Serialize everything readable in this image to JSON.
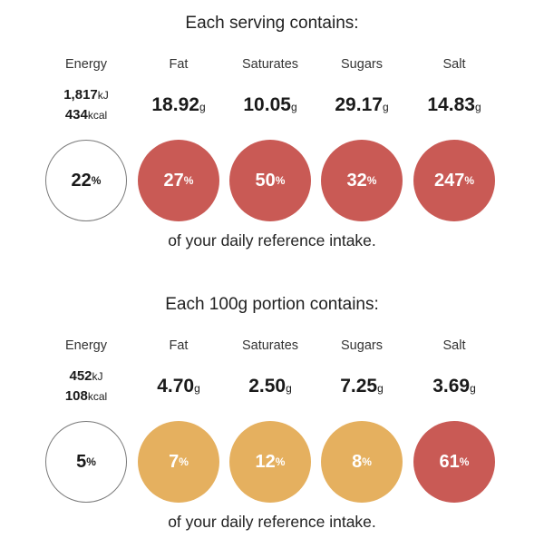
{
  "serving": {
    "heading": "Each serving contains:",
    "labels": [
      "Energy",
      "Fat",
      "Saturates",
      "Sugars",
      "Salt"
    ],
    "energy": {
      "kj": "1,817",
      "kj_unit": "kJ",
      "kcal": "434",
      "kcal_unit": "kcal"
    },
    "nutrients": [
      {
        "value": "18.92",
        "unit": "g"
      },
      {
        "value": "10.05",
        "unit": "g"
      },
      {
        "value": "29.17",
        "unit": "g"
      },
      {
        "value": "14.83",
        "unit": "g"
      }
    ],
    "percents": [
      {
        "value": "22",
        "sign": "%",
        "level": "white"
      },
      {
        "value": "27",
        "sign": "%",
        "level": "red"
      },
      {
        "value": "50",
        "sign": "%",
        "level": "red"
      },
      {
        "value": "32",
        "sign": "%",
        "level": "red"
      },
      {
        "value": "247",
        "sign": "%",
        "level": "red"
      }
    ],
    "footer": "of your daily reference intake."
  },
  "per100g": {
    "heading": "Each 100g portion contains:",
    "labels": [
      "Energy",
      "Fat",
      "Saturates",
      "Sugars",
      "Salt"
    ],
    "energy": {
      "kj": "452",
      "kj_unit": "kJ",
      "kcal": "108",
      "kcal_unit": "kcal"
    },
    "nutrients": [
      {
        "value": "4.70",
        "unit": "g"
      },
      {
        "value": "2.50",
        "unit": "g"
      },
      {
        "value": "7.25",
        "unit": "g"
      },
      {
        "value": "3.69",
        "unit": "g"
      }
    ],
    "percents": [
      {
        "value": "5",
        "sign": "%",
        "level": "white"
      },
      {
        "value": "7",
        "sign": "%",
        "level": "amber"
      },
      {
        "value": "12",
        "sign": "%",
        "level": "amber"
      },
      {
        "value": "8",
        "sign": "%",
        "level": "amber"
      },
      {
        "value": "61",
        "sign": "%",
        "level": "red"
      }
    ],
    "footer": "of your daily reference intake."
  },
  "colors": {
    "red": "#c95a55",
    "amber": "#e5b05f",
    "white": "#ffffff"
  }
}
